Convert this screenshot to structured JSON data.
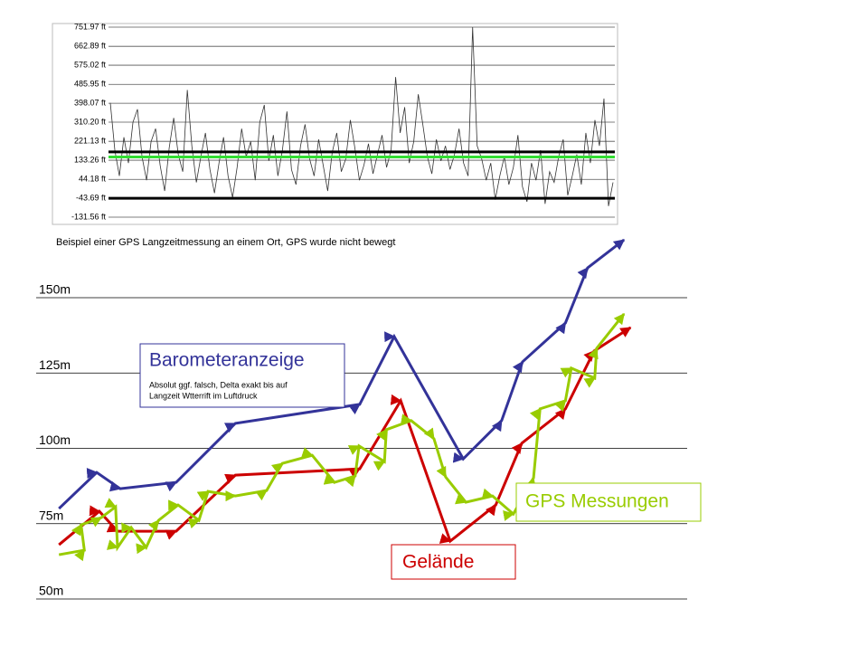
{
  "chart_data": [
    {
      "type": "line",
      "caption": "Beispiel einer GPS Langzeitmessung an einem Ort, GPS wurde nicht bewegt",
      "ylim": [
        -131.56,
        751.97
      ],
      "yticks": [
        {
          "value": -131.56,
          "label": "-131.56 ft"
        },
        {
          "value": -43.69,
          "label": "-43.69 ft"
        },
        {
          "value": 44.18,
          "label": "44.18 ft"
        },
        {
          "value": 133.26,
          "label": "133.26 ft"
        },
        {
          "value": 221.13,
          "label": "221.13 ft"
        },
        {
          "value": 310.2,
          "label": "310.20 ft"
        },
        {
          "value": 398.07,
          "label": "398.07 ft"
        },
        {
          "value": 485.95,
          "label": "485.95 ft"
        },
        {
          "value": 575.02,
          "label": "575.02 ft"
        },
        {
          "value": 662.89,
          "label": "662.89 ft"
        },
        {
          "value": 751.97,
          "label": "751.97 ft"
        }
      ],
      "grid": true,
      "reference_lines": [
        {
          "value": 172,
          "color": "#000000"
        },
        {
          "value": 148,
          "color": "#33dd33"
        },
        {
          "value": -43.69,
          "color": "#000000"
        }
      ],
      "series": [
        {
          "color": "#333333",
          "values": [
            400,
            180,
            60,
            240,
            120,
            310,
            370,
            150,
            40,
            220,
            280,
            110,
            -10,
            190,
            330,
            160,
            80,
            460,
            200,
            30,
            150,
            260,
            90,
            -20,
            120,
            240,
            60,
            -40,
            100,
            280,
            150,
            220,
            40,
            310,
            390,
            130,
            250,
            60,
            180,
            360,
            90,
            20,
            200,
            300,
            140,
            60,
            230,
            110,
            -10,
            170,
            260,
            80,
            140,
            320,
            190,
            40,
            110,
            210,
            70,
            160,
            250,
            100,
            180,
            520,
            260,
            380,
            120,
            220,
            440,
            300,
            150,
            70,
            230,
            130,
            200,
            90,
            160,
            280,
            120,
            60,
            751.97,
            200,
            140,
            40,
            120,
            -50,
            60,
            150,
            20,
            100,
            250,
            10,
            -60,
            120,
            40,
            180,
            -70,
            80,
            30,
            150,
            230,
            -30,
            60,
            160,
            20,
            260,
            120,
            320,
            200,
            420,
            -80,
            30
          ]
        }
      ]
    },
    {
      "type": "line",
      "xlim": [
        0,
        100
      ],
      "ylim": [
        50,
        150
      ],
      "yticks": [
        {
          "value": 50,
          "label": "50m"
        },
        {
          "value": 75,
          "label": "75m"
        },
        {
          "value": 100,
          "label": "100m"
        },
        {
          "value": 125,
          "label": "125m"
        },
        {
          "value": 150,
          "label": "150m"
        }
      ],
      "grid": true,
      "annotation": [
        "Absolut ggf. falsch, Delta exakt bis auf",
        "Langzeit Wtterrift im Luftdruck"
      ],
      "series": [
        {
          "name": "Barometeranzeige",
          "color": "#333399",
          "x": [
            3.5,
            9.3,
            12.9,
            21.5,
            30.6,
            49.7,
            55.0,
            65.6,
            71.5,
            74.7,
            81.3,
            84.7,
            90.3
          ],
          "values": [
            80.0,
            92.0,
            86.6,
            88.7,
            108.3,
            114.6,
            137.1,
            96.5,
            109.2,
            128.7,
            141.6,
            159.9,
            169.2
          ]
        },
        {
          "name": "Gelände",
          "color": "#cc0000",
          "x": [
            3.5,
            9.7,
            12.5,
            21.5,
            30.6,
            49.7,
            56.0,
            63.6,
            70.6,
            74.6,
            81.3,
            85.7,
            91.3
          ],
          "values": [
            68.0,
            79.1,
            72.5,
            72.5,
            91.1,
            93.2,
            115.8,
            69.2,
            81.2,
            101.7,
            113.1,
            132.3,
            140.1
          ]
        },
        {
          "name": "GPS Messungen",
          "color": "#99cc00",
          "x": [
            3.5,
            7.4,
            6.9,
            10.0,
            12.2,
            12.5,
            14.6,
            16.9,
            18.8,
            21.8,
            25.0,
            26.4,
            30.6,
            35.4,
            37.8,
            42.4,
            45.8,
            49.0,
            49.6,
            53.5,
            53.8,
            57.6,
            61.1,
            62.9,
            66.0,
            70.1,
            73.3,
            76.4,
            77.4,
            81.3,
            82.2,
            85.8,
            86.1,
            90.3
          ],
          "values": [
            64.7,
            66.2,
            74.6,
            77.0,
            80.6,
            67.1,
            73.7,
            67.1,
            76.1,
            81.2,
            76.1,
            85.7,
            84.2,
            86.0,
            95.0,
            97.7,
            88.7,
            90.8,
            100.8,
            95.6,
            106.2,
            109.2,
            103.2,
            90.5,
            82.1,
            84.2,
            78.2,
            90.2,
            113.1,
            115.8,
            126.6,
            123.3,
            133.2,
            144.6
          ]
        }
      ]
    }
  ]
}
